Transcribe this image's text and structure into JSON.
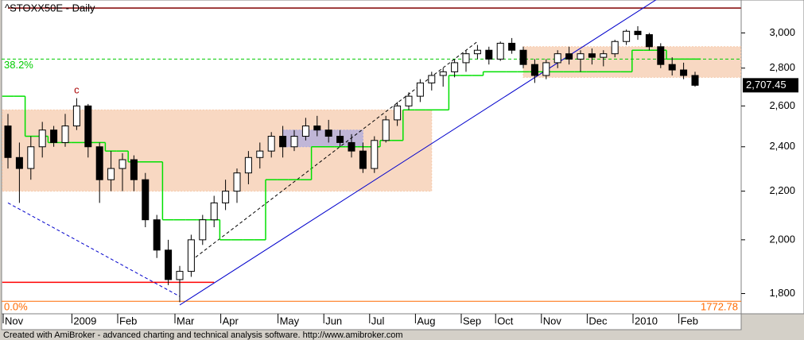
{
  "chart_data": {
    "type": "candlestick",
    "title": "^STOXX50E - Daily",
    "footer": "Created with AmiBroker - advanced charting and technical analysis software. http://www.amibroker.com",
    "log_scale": true,
    "ylim": [
      1730,
      3200
    ],
    "yticks": [
      {
        "value": 1800,
        "label": "1,800"
      },
      {
        "value": 2000,
        "label": "2,000"
      },
      {
        "value": 2200,
        "label": "2,200"
      },
      {
        "value": 2400,
        "label": "2,400"
      },
      {
        "value": 2600,
        "label": "2,600"
      },
      {
        "value": 2800,
        "label": "2,800"
      },
      {
        "value": 3000,
        "label": "3,000"
      }
    ],
    "categories": [
      "Nov",
      null,
      null,
      null,
      null,
      null,
      "2009",
      null,
      null,
      null,
      "Feb",
      null,
      null,
      null,
      null,
      "Mar",
      null,
      null,
      null,
      "Apr",
      null,
      null,
      null,
      null,
      "May",
      null,
      null,
      null,
      "Jun",
      null,
      null,
      null,
      "Jul",
      null,
      null,
      null,
      "Aug",
      null,
      null,
      null,
      "Sep",
      null,
      null,
      "Oct",
      null,
      null,
      null,
      "Nov",
      null,
      null,
      null,
      "Dec",
      null,
      null,
      null,
      "2010",
      null,
      null,
      null,
      "Feb",
      null
    ],
    "open": [
      2500,
      2350,
      2300,
      2400,
      2480,
      2420,
      2500,
      2600,
      2400,
      2250,
      2300,
      2340,
      2250,
      2080,
      1960,
      1850,
      1880,
      2000,
      2080,
      2150,
      2200,
      2280,
      2350,
      2380,
      2450,
      2400,
      2450,
      2500,
      2480,
      2450,
      2420,
      2380,
      2300,
      2430,
      2530,
      2600,
      2650,
      2720,
      2760,
      2780,
      2830,
      2880,
      2900,
      2850,
      2940,
      2900,
      2820,
      2760,
      2830,
      2880,
      2850,
      2880,
      2860,
      2880,
      2950,
      3010,
      2990,
      2920,
      2820,
      2790,
      2760
    ],
    "high": [
      2560,
      2420,
      2450,
      2520,
      2500,
      2560,
      2640,
      2610,
      2420,
      2380,
      2370,
      2360,
      2280,
      2100,
      2000,
      1900,
      2020,
      2100,
      2180,
      2250,
      2300,
      2380,
      2420,
      2470,
      2500,
      2480,
      2540,
      2550,
      2530,
      2480,
      2460,
      2420,
      2450,
      2550,
      2620,
      2670,
      2740,
      2780,
      2800,
      2850,
      2900,
      2930,
      2920,
      2950,
      2970,
      2920,
      2850,
      2850,
      2900,
      2920,
      2900,
      2910,
      2900,
      2960,
      3020,
      3040,
      3000,
      2940,
      2860,
      2830,
      2780
    ],
    "low": [
      2300,
      2150,
      2250,
      2350,
      2400,
      2400,
      2480,
      2350,
      2150,
      2200,
      2200,
      2200,
      2050,
      1930,
      1830,
      1770,
      1860,
      1980,
      2050,
      2120,
      2150,
      2230,
      2300,
      2350,
      2350,
      2380,
      2430,
      2450,
      2420,
      2400,
      2350,
      2280,
      2280,
      2420,
      2500,
      2580,
      2620,
      2680,
      2700,
      2750,
      2780,
      2850,
      2820,
      2840,
      2880,
      2800,
      2720,
      2740,
      2800,
      2820,
      2780,
      2820,
      2810,
      2860,
      2930,
      2960,
      2900,
      2800,
      2760,
      2740,
      2700
    ],
    "close": [
      2350,
      2300,
      2400,
      2480,
      2420,
      2500,
      2600,
      2400,
      2250,
      2300,
      2340,
      2250,
      2080,
      1960,
      1850,
      1880,
      2000,
      2080,
      2150,
      2200,
      2280,
      2350,
      2380,
      2450,
      2400,
      2450,
      2500,
      2480,
      2450,
      2420,
      2380,
      2300,
      2430,
      2530,
      2600,
      2650,
      2720,
      2760,
      2780,
      2830,
      2880,
      2900,
      2850,
      2940,
      2900,
      2820,
      2760,
      2830,
      2880,
      2850,
      2880,
      2860,
      2880,
      2950,
      3010,
      2990,
      2920,
      2820,
      2790,
      2760,
      2707.45
    ],
    "last_value_label": "2,707.45",
    "stop_line": {
      "color": "#00e000",
      "values": [
        2650,
        2650,
        2450,
        2450,
        2420,
        2420,
        2420,
        2420,
        2420,
        2380,
        2380,
        2330,
        2330,
        2330,
        2080,
        2080,
        2080,
        2080,
        2080,
        2000,
        2000,
        2000,
        2000,
        2250,
        2250,
        2250,
        2250,
        2400,
        2400,
        2400,
        2400,
        2400,
        2400,
        2430,
        2430,
        2580,
        2580,
        2580,
        2580,
        2760,
        2760,
        2760,
        2780,
        2780,
        2780,
        2780,
        2780,
        2780,
        2780,
        2780,
        2780,
        2780,
        2780,
        2780,
        2780,
        2900,
        2900,
        2900,
        2850,
        2850,
        2850
      ]
    },
    "fib_levels": [
      {
        "label": "38.2%",
        "value": 2850,
        "color": "#00cc00",
        "dashed": true,
        "show_value": false
      },
      {
        "label": "0.0%",
        "value": 1772.78,
        "color": "#ff6a00",
        "dashed": false,
        "show_value": true
      }
    ],
    "hlines": [
      {
        "value": 3150,
        "color": "#800000",
        "from": 0,
        "to": 64
      },
      {
        "value": 1840,
        "color": "#ff0000",
        "from": -0.5,
        "to": 18
      }
    ],
    "zones": [
      {
        "x": [
          -0.5,
          37
        ],
        "y": [
          2200,
          2580
        ],
        "color": "#f5c8a8"
      },
      {
        "x": [
          45,
          64
        ],
        "y": [
          2750,
          2920
        ],
        "color": "#f5c8a8"
      },
      {
        "x": [
          24,
          31
        ],
        "y": [
          2400,
          2480
        ],
        "color": "#a8a8e0"
      }
    ],
    "trendlines": [
      {
        "points": [
          [
            15,
            1760
          ],
          [
            57,
            3220
          ]
        ],
        "color": "#0000cc",
        "dashed": false
      },
      {
        "points": [
          [
            0,
            2150
          ],
          [
            15,
            1790
          ]
        ],
        "color": "#0000cc",
        "dashed": true
      },
      {
        "points": [
          [
            16,
            1920
          ],
          [
            41,
            2950
          ]
        ],
        "color": "#000000",
        "dashed": true
      }
    ],
    "annotations": [
      {
        "text": "c",
        "x": 6,
        "y": 2680,
        "color": "#aa0000"
      }
    ]
  }
}
